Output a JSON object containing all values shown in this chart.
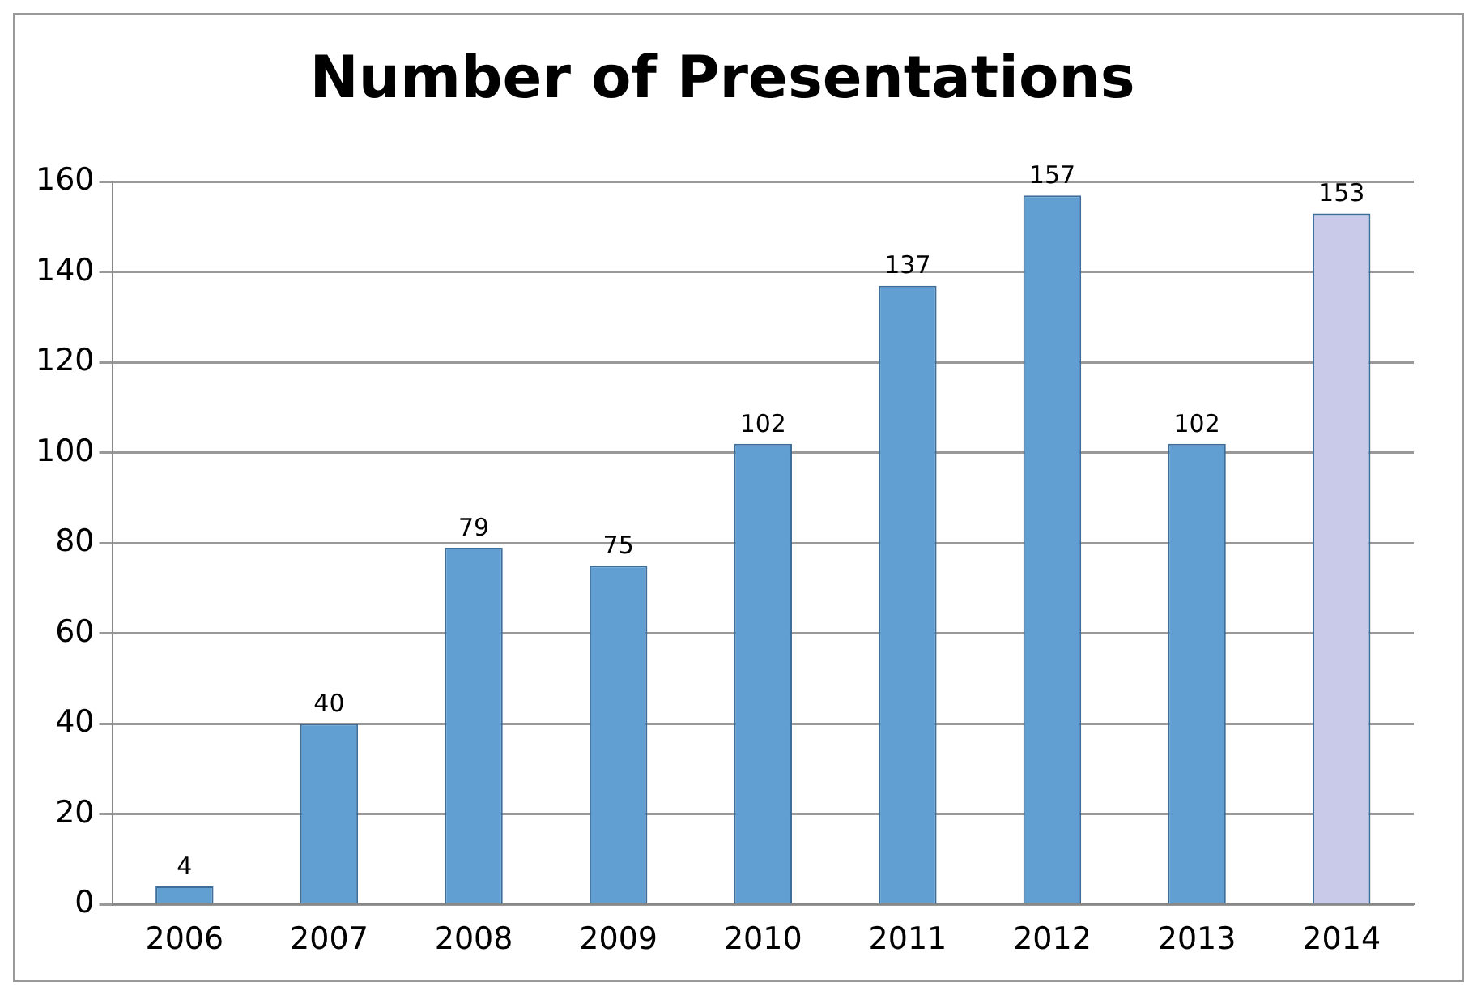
{
  "chart_data": {
    "type": "bar",
    "title": "Number of Presentations",
    "categories": [
      "2006",
      "2007",
      "2008",
      "2009",
      "2010",
      "2011",
      "2012",
      "2013",
      "2014"
    ],
    "values": [
      4,
      40,
      79,
      75,
      102,
      137,
      157,
      102,
      153
    ],
    "colors": [
      "#619fd3",
      "#619fd3",
      "#619fd3",
      "#619fd3",
      "#619fd3",
      "#619fd3",
      "#619fd3",
      "#619fd3",
      "#c9c9e9"
    ],
    "ylim": [
      0,
      160
    ],
    "yticks": [
      0,
      20,
      40,
      60,
      80,
      100,
      120,
      140,
      160
    ],
    "grid": "y",
    "data_labels": true,
    "legend": false
  }
}
